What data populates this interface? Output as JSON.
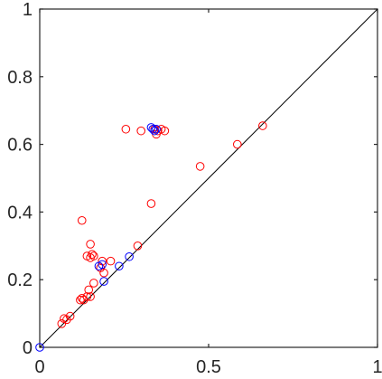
{
  "chart_data": {
    "type": "scatter",
    "title": "",
    "xlabel": "",
    "ylabel": "",
    "xlim": [
      0,
      1
    ],
    "ylim": [
      0,
      1
    ],
    "grid": false,
    "legend": "none",
    "x_ticks": [
      {
        "value": 0,
        "label": "0"
      },
      {
        "value": 0.5,
        "label": "0.5"
      },
      {
        "value": 1,
        "label": "1"
      }
    ],
    "y_ticks": [
      {
        "value": 0,
        "label": "0"
      },
      {
        "value": 0.2,
        "label": "0.2"
      },
      {
        "value": 0.4,
        "label": "0.4"
      },
      {
        "value": 0.6,
        "label": "0.6"
      },
      {
        "value": 0.8,
        "label": "0.8"
      },
      {
        "value": 1,
        "label": "1"
      }
    ],
    "reference_line": {
      "from": [
        0,
        0
      ],
      "to": [
        1,
        1
      ],
      "color": "#000000"
    },
    "series": [
      {
        "color": "#ff0000",
        "marker": "circle-open",
        "points": [
          [
            0.065,
            0.07
          ],
          [
            0.072,
            0.085
          ],
          [
            0.08,
            0.082
          ],
          [
            0.09,
            0.092
          ],
          [
            0.12,
            0.14
          ],
          [
            0.125,
            0.145
          ],
          [
            0.13,
            0.14
          ],
          [
            0.14,
            0.15
          ],
          [
            0.145,
            0.17
          ],
          [
            0.15,
            0.15
          ],
          [
            0.16,
            0.19
          ],
          [
            0.14,
            0.27
          ],
          [
            0.15,
            0.265
          ],
          [
            0.155,
            0.275
          ],
          [
            0.16,
            0.27
          ],
          [
            0.15,
            0.305
          ],
          [
            0.125,
            0.375
          ],
          [
            0.18,
            0.235
          ],
          [
            0.185,
            0.255
          ],
          [
            0.19,
            0.22
          ],
          [
            0.21,
            0.255
          ],
          [
            0.29,
            0.3
          ],
          [
            0.33,
            0.425
          ],
          [
            0.255,
            0.645
          ],
          [
            0.3,
            0.64
          ],
          [
            0.35,
            0.64
          ],
          [
            0.36,
            0.645
          ],
          [
            0.345,
            0.63
          ],
          [
            0.37,
            0.64
          ],
          [
            0.34,
            0.645
          ],
          [
            0.475,
            0.535
          ],
          [
            0.585,
            0.6
          ],
          [
            0.66,
            0.655
          ]
        ]
      },
      {
        "color": "#0000ff",
        "marker": "circle-open",
        "points": [
          [
            0.0,
            0.0
          ],
          [
            0.175,
            0.24
          ],
          [
            0.185,
            0.245
          ],
          [
            0.19,
            0.195
          ],
          [
            0.235,
            0.24
          ],
          [
            0.265,
            0.268
          ],
          [
            0.33,
            0.65
          ],
          [
            0.335,
            0.645
          ],
          [
            0.34,
            0.64
          ],
          [
            0.345,
            0.645
          ]
        ]
      }
    ]
  }
}
